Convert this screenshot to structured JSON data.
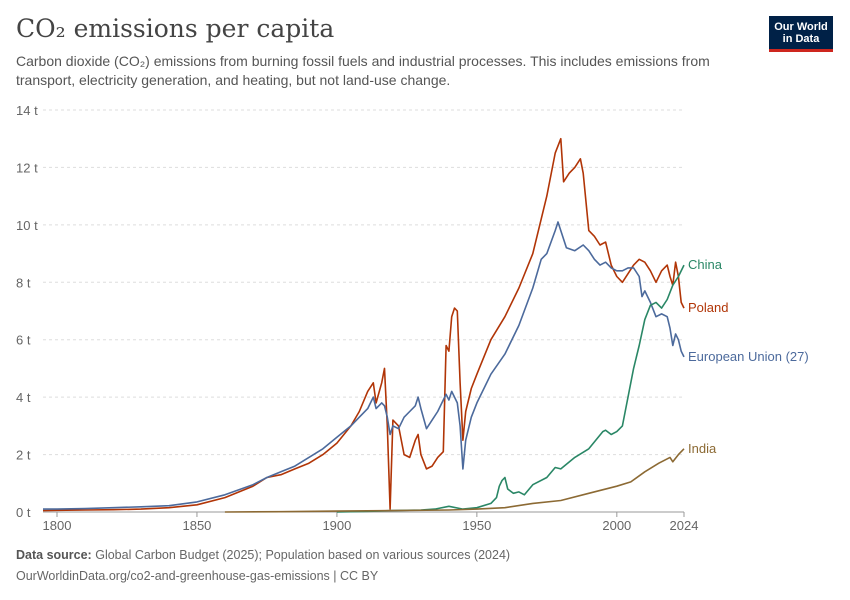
{
  "header": {
    "title": "CO₂ emissions per capita",
    "subtitle": "Carbon dioxide (CO₂) emissions from burning fossil fuels and industrial processes. This includes emissions from transport, electricity generation, and heating, but not land-use change."
  },
  "logo": {
    "line1": "Our World",
    "line2": "in Data"
  },
  "footer": {
    "source_label": "Data source:",
    "source_text": "Global Carbon Budget (2025); Population based on various sources (2024)",
    "url_line": "OurWorldinData.org/co2-and-greenhouse-gas-emissions | CC BY"
  },
  "chart_data": {
    "type": "line",
    "title": "CO₂ emissions per capita",
    "xlim": [
      1795,
      2024
    ],
    "ylim": [
      0,
      14
    ],
    "x_ticks": [
      1800,
      1850,
      1900,
      1950,
      2000,
      2024
    ],
    "y_ticks": [
      0,
      2,
      4,
      6,
      8,
      10,
      12,
      14
    ],
    "y_unit": " t",
    "grid": "horizontal dashed",
    "legend": "line-end labels",
    "series": [
      {
        "name": "Poland",
        "color": "#b13507",
        "points": [
          [
            1795,
            0.05
          ],
          [
            1800,
            0.06
          ],
          [
            1810,
            0.07
          ],
          [
            1820,
            0.08
          ],
          [
            1830,
            0.1
          ],
          [
            1840,
            0.15
          ],
          [
            1850,
            0.25
          ],
          [
            1860,
            0.5
          ],
          [
            1870,
            0.9
          ],
          [
            1875,
            1.2
          ],
          [
            1880,
            1.3
          ],
          [
            1885,
            1.5
          ],
          [
            1890,
            1.7
          ],
          [
            1895,
            2.0
          ],
          [
            1900,
            2.4
          ],
          [
            1905,
            3.0
          ],
          [
            1908,
            3.5
          ],
          [
            1911,
            4.2
          ],
          [
            1913,
            4.5
          ],
          [
            1914,
            3.8
          ],
          [
            1916,
            4.5
          ],
          [
            1917,
            5.0
          ],
          [
            1918,
            3.0
          ],
          [
            1919,
            0.1
          ],
          [
            1920,
            3.2
          ],
          [
            1922,
            3.0
          ],
          [
            1924,
            2.0
          ],
          [
            1926,
            1.9
          ],
          [
            1928,
            2.5
          ],
          [
            1929,
            2.7
          ],
          [
            1930,
            2.0
          ],
          [
            1932,
            1.5
          ],
          [
            1934,
            1.6
          ],
          [
            1936,
            1.9
          ],
          [
            1938,
            2.1
          ],
          [
            1939,
            5.8
          ],
          [
            1940,
            5.6
          ],
          [
            1941,
            6.8
          ],
          [
            1942,
            7.1
          ],
          [
            1943,
            7.0
          ],
          [
            1944,
            4.5
          ],
          [
            1945,
            2.5
          ],
          [
            1946,
            3.5
          ],
          [
            1948,
            4.3
          ],
          [
            1950,
            4.8
          ],
          [
            1955,
            6.0
          ],
          [
            1960,
            6.8
          ],
          [
            1965,
            7.8
          ],
          [
            1970,
            9.0
          ],
          [
            1973,
            10.2
          ],
          [
            1975,
            11.0
          ],
          [
            1978,
            12.5
          ],
          [
            1980,
            13.0
          ],
          [
            1981,
            11.5
          ],
          [
            1983,
            11.8
          ],
          [
            1985,
            12.0
          ],
          [
            1987,
            12.3
          ],
          [
            1988,
            11.8
          ],
          [
            1990,
            9.8
          ],
          [
            1992,
            9.6
          ],
          [
            1994,
            9.3
          ],
          [
            1996,
            9.4
          ],
          [
            1998,
            8.6
          ],
          [
            2000,
            8.2
          ],
          [
            2002,
            8.0
          ],
          [
            2004,
            8.3
          ],
          [
            2006,
            8.6
          ],
          [
            2008,
            8.8
          ],
          [
            2010,
            8.7
          ],
          [
            2012,
            8.4
          ],
          [
            2014,
            8.0
          ],
          [
            2016,
            8.4
          ],
          [
            2018,
            8.6
          ],
          [
            2019,
            8.2
          ],
          [
            2020,
            7.9
          ],
          [
            2021,
            8.7
          ],
          [
            2022,
            8.2
          ],
          [
            2023,
            7.3
          ],
          [
            2024,
            7.1
          ]
        ]
      },
      {
        "name": "European Union (27)",
        "color": "#4c6a9c",
        "points": [
          [
            1795,
            0.1
          ],
          [
            1800,
            0.1
          ],
          [
            1810,
            0.12
          ],
          [
            1820,
            0.15
          ],
          [
            1830,
            0.18
          ],
          [
            1840,
            0.22
          ],
          [
            1850,
            0.35
          ],
          [
            1860,
            0.6
          ],
          [
            1870,
            0.95
          ],
          [
            1875,
            1.2
          ],
          [
            1880,
            1.4
          ],
          [
            1885,
            1.6
          ],
          [
            1890,
            1.9
          ],
          [
            1895,
            2.2
          ],
          [
            1900,
            2.6
          ],
          [
            1905,
            3.0
          ],
          [
            1908,
            3.3
          ],
          [
            1911,
            3.6
          ],
          [
            1913,
            4.0
          ],
          [
            1914,
            3.6
          ],
          [
            1916,
            3.8
          ],
          [
            1917,
            3.7
          ],
          [
            1918,
            3.3
          ],
          [
            1919,
            2.7
          ],
          [
            1920,
            3.0
          ],
          [
            1922,
            2.9
          ],
          [
            1924,
            3.3
          ],
          [
            1926,
            3.5
          ],
          [
            1928,
            3.7
          ],
          [
            1929,
            4.0
          ],
          [
            1930,
            3.6
          ],
          [
            1932,
            2.9
          ],
          [
            1934,
            3.2
          ],
          [
            1936,
            3.5
          ],
          [
            1938,
            3.9
          ],
          [
            1939,
            4.1
          ],
          [
            1940,
            3.9
          ],
          [
            1941,
            4.2
          ],
          [
            1942,
            4.0
          ],
          [
            1943,
            3.8
          ],
          [
            1944,
            3.0
          ],
          [
            1945,
            1.5
          ],
          [
            1946,
            2.5
          ],
          [
            1948,
            3.3
          ],
          [
            1950,
            3.8
          ],
          [
            1955,
            4.8
          ],
          [
            1960,
            5.5
          ],
          [
            1965,
            6.5
          ],
          [
            1970,
            7.8
          ],
          [
            1973,
            8.8
          ],
          [
            1975,
            9.0
          ],
          [
            1978,
            9.8
          ],
          [
            1979,
            10.1
          ],
          [
            1980,
            9.8
          ],
          [
            1982,
            9.2
          ],
          [
            1985,
            9.1
          ],
          [
            1988,
            9.3
          ],
          [
            1990,
            9.1
          ],
          [
            1992,
            8.8
          ],
          [
            1994,
            8.6
          ],
          [
            1996,
            8.7
          ],
          [
            1998,
            8.5
          ],
          [
            2000,
            8.4
          ],
          [
            2002,
            8.4
          ],
          [
            2004,
            8.5
          ],
          [
            2006,
            8.5
          ],
          [
            2008,
            8.2
          ],
          [
            2009,
            7.5
          ],
          [
            2010,
            7.7
          ],
          [
            2012,
            7.3
          ],
          [
            2014,
            6.8
          ],
          [
            2016,
            6.9
          ],
          [
            2018,
            6.8
          ],
          [
            2019,
            6.4
          ],
          [
            2020,
            5.8
          ],
          [
            2021,
            6.2
          ],
          [
            2022,
            6.0
          ],
          [
            2023,
            5.6
          ],
          [
            2024,
            5.4
          ]
        ]
      },
      {
        "name": "China",
        "color": "#2a8766",
        "points": [
          [
            1900,
            0.0
          ],
          [
            1910,
            0.02
          ],
          [
            1920,
            0.05
          ],
          [
            1930,
            0.07
          ],
          [
            1935,
            0.1
          ],
          [
            1940,
            0.2
          ],
          [
            1945,
            0.1
          ],
          [
            1950,
            0.15
          ],
          [
            1955,
            0.3
          ],
          [
            1957,
            0.5
          ],
          [
            1958,
            0.9
          ],
          [
            1959,
            1.1
          ],
          [
            1960,
            1.2
          ],
          [
            1961,
            0.8
          ],
          [
            1963,
            0.65
          ],
          [
            1965,
            0.7
          ],
          [
            1967,
            0.6
          ],
          [
            1970,
            0.95
          ],
          [
            1975,
            1.2
          ],
          [
            1978,
            1.55
          ],
          [
            1980,
            1.5
          ],
          [
            1985,
            1.9
          ],
          [
            1990,
            2.2
          ],
          [
            1995,
            2.8
          ],
          [
            1996,
            2.85
          ],
          [
            1998,
            2.7
          ],
          [
            2000,
            2.8
          ],
          [
            2002,
            3.0
          ],
          [
            2004,
            4.0
          ],
          [
            2006,
            5.0
          ],
          [
            2008,
            5.8
          ],
          [
            2010,
            6.7
          ],
          [
            2012,
            7.2
          ],
          [
            2014,
            7.3
          ],
          [
            2016,
            7.1
          ],
          [
            2018,
            7.4
          ],
          [
            2020,
            7.9
          ],
          [
            2022,
            8.2
          ],
          [
            2024,
            8.6
          ]
        ]
      },
      {
        "name": "India",
        "color": "#8c6a34",
        "points": [
          [
            1860,
            0.0
          ],
          [
            1880,
            0.01
          ],
          [
            1900,
            0.03
          ],
          [
            1920,
            0.05
          ],
          [
            1940,
            0.07
          ],
          [
            1950,
            0.1
          ],
          [
            1960,
            0.15
          ],
          [
            1970,
            0.3
          ],
          [
            1980,
            0.4
          ],
          [
            1990,
            0.65
          ],
          [
            2000,
            0.9
          ],
          [
            2005,
            1.05
          ],
          [
            2010,
            1.4
          ],
          [
            2015,
            1.7
          ],
          [
            2019,
            1.9
          ],
          [
            2020,
            1.75
          ],
          [
            2022,
            2.0
          ],
          [
            2024,
            2.2
          ]
        ]
      }
    ]
  }
}
